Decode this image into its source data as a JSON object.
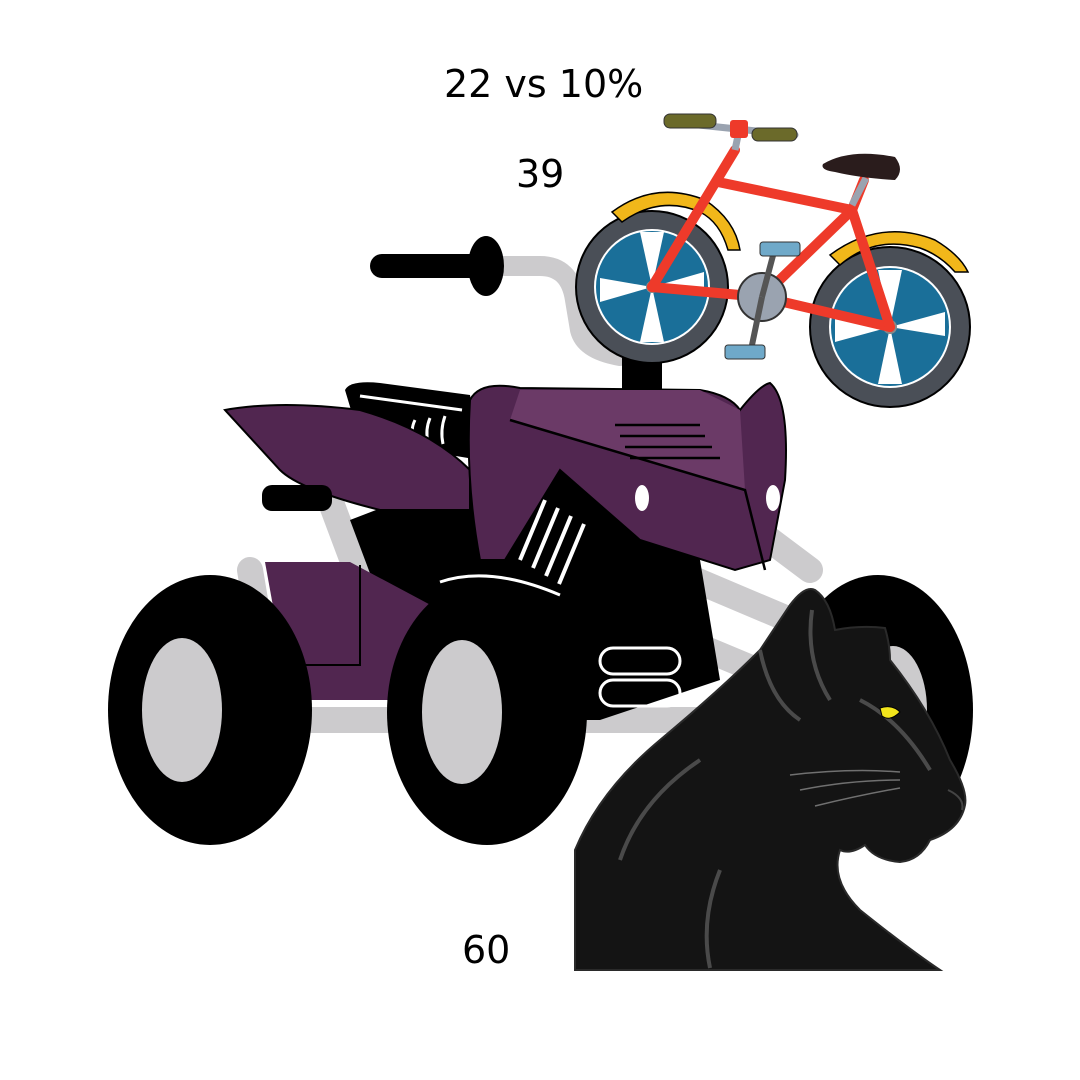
{
  "labels": {
    "top": "22 vs 10%",
    "middle": "39",
    "bottom": "60"
  },
  "illustrations": [
    "atv-quad-bike",
    "bicycle",
    "black-panther"
  ],
  "colors": {
    "background": "#ffffff",
    "atv_body": "#512650",
    "atv_body_light": "#6b3a67",
    "atv_frame": "#cccbcd",
    "tire": "#000000",
    "bike_frame": "#ee3a2a",
    "bike_fender": "#f1b71a",
    "bike_rim": "#1a6f99",
    "panther": "#141414",
    "panther_eye": "#f2e51b"
  }
}
